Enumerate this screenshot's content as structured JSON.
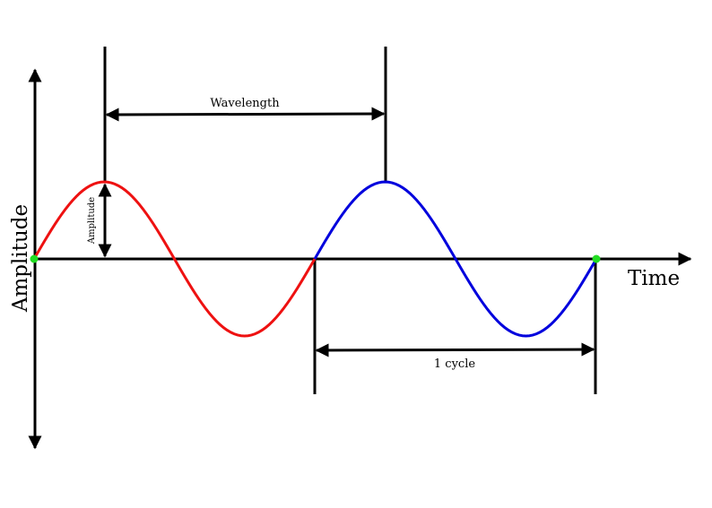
{
  "labels": {
    "y_axis": "Amplitude",
    "x_axis": "Time",
    "wavelength": "Wavelength",
    "amplitude_marker": "Amplitude",
    "cycle": "1 cycle"
  },
  "waves": {
    "first_cycle_color": "#ee1111",
    "second_cycle_color": "#0000dd",
    "marker_color": "#22dd22"
  }
}
